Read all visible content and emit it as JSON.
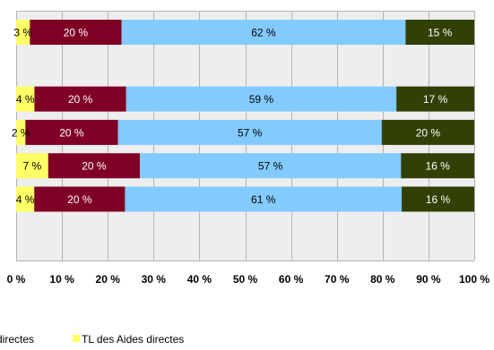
{
  "chart_data": {
    "type": "bar",
    "orientation": "horizontal",
    "stacked": true,
    "percent_stacked": true,
    "xlim": [
      0,
      100
    ],
    "x_ticks": [
      "0 %",
      "10 %",
      "20 %",
      "30 %",
      "40 %",
      "50 %",
      "60 %",
      "70 %",
      "80 %",
      "90 %",
      "100 %"
    ],
    "grid": true,
    "categories": [
      "",
      "",
      "",
      "",
      "",
      ""
    ],
    "series": [
      {
        "name": "",
        "color": "#ffff66",
        "values": [
          3,
          null,
          4,
          2,
          7,
          4
        ],
        "labels": [
          "3 %",
          "",
          "4 %",
          "2 %",
          "7 %",
          "4 %"
        ]
      },
      {
        "name": "",
        "color": "#800025",
        "values": [
          20,
          null,
          20,
          20,
          20,
          20
        ],
        "labels": [
          "20 %",
          "",
          "20 %",
          "20 %",
          "20 %",
          "20 %"
        ]
      },
      {
        "name": "",
        "color": "#83caff",
        "values": [
          62,
          null,
          59,
          57,
          57,
          61
        ],
        "labels": [
          "62 %",
          "",
          "59 %",
          "57 %",
          "57 %",
          "61 %"
        ]
      },
      {
        "name": "",
        "color": "#314004",
        "values": [
          15,
          null,
          17,
          20,
          16,
          16
        ],
        "labels": [
          "15 %",
          "",
          "17 %",
          "20 %",
          "16 %",
          "16 %"
        ]
      }
    ]
  },
  "legend": {
    "placement": "bottom",
    "items": [
      {
        "label": "directes",
        "color": "#314004"
      },
      {
        "label": "TL des Aides directes",
        "color": "#ffff66"
      }
    ]
  }
}
